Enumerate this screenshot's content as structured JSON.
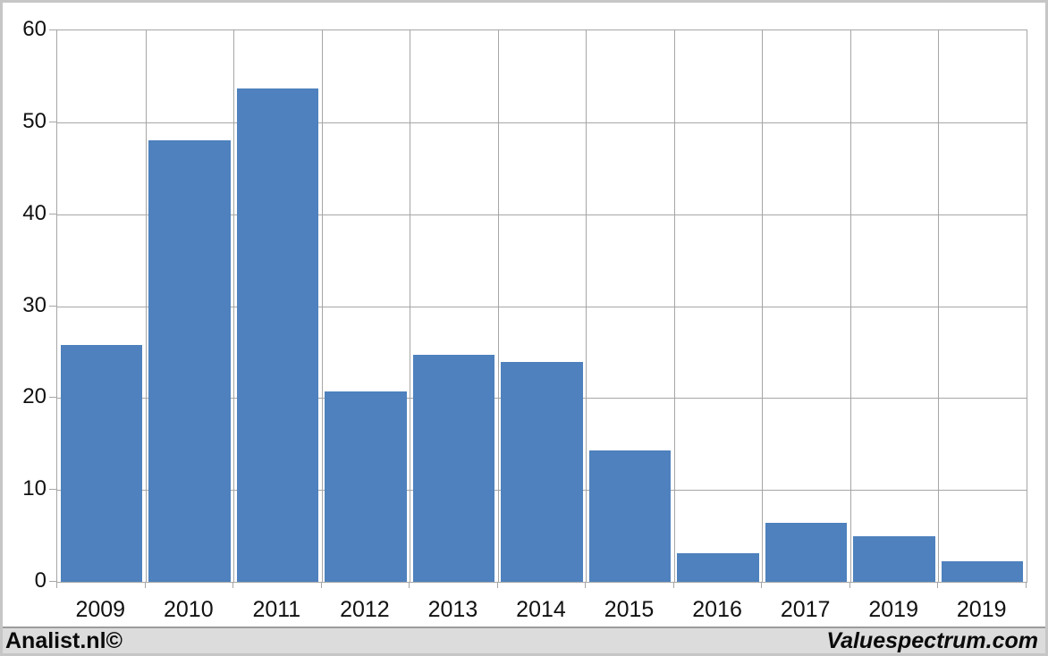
{
  "chart_data": {
    "type": "bar",
    "categories": [
      "2009",
      "2010",
      "2011",
      "2012",
      "2013",
      "2014",
      "2015",
      "2016",
      "2017",
      "2019",
      "2019"
    ],
    "values": [
      25.8,
      48.0,
      53.7,
      20.7,
      24.7,
      23.9,
      14.3,
      3.1,
      6.4,
      5.0,
      2.2
    ],
    "title": "",
    "xlabel": "",
    "ylabel": "",
    "ylim": [
      0,
      60
    ],
    "yticks": [
      0,
      10,
      20,
      30,
      40,
      50,
      60
    ],
    "grid": true,
    "legend": false,
    "bar_color": "#4e81bd",
    "gridline_color": "#a6a6a6",
    "plot_border_color": "#a6a6a6",
    "plot_background": "#ffffff"
  },
  "footer": {
    "left_credit": "Analist.nl©",
    "right_credit": "Valuespectrum.com",
    "background": "#dcdcdc"
  }
}
